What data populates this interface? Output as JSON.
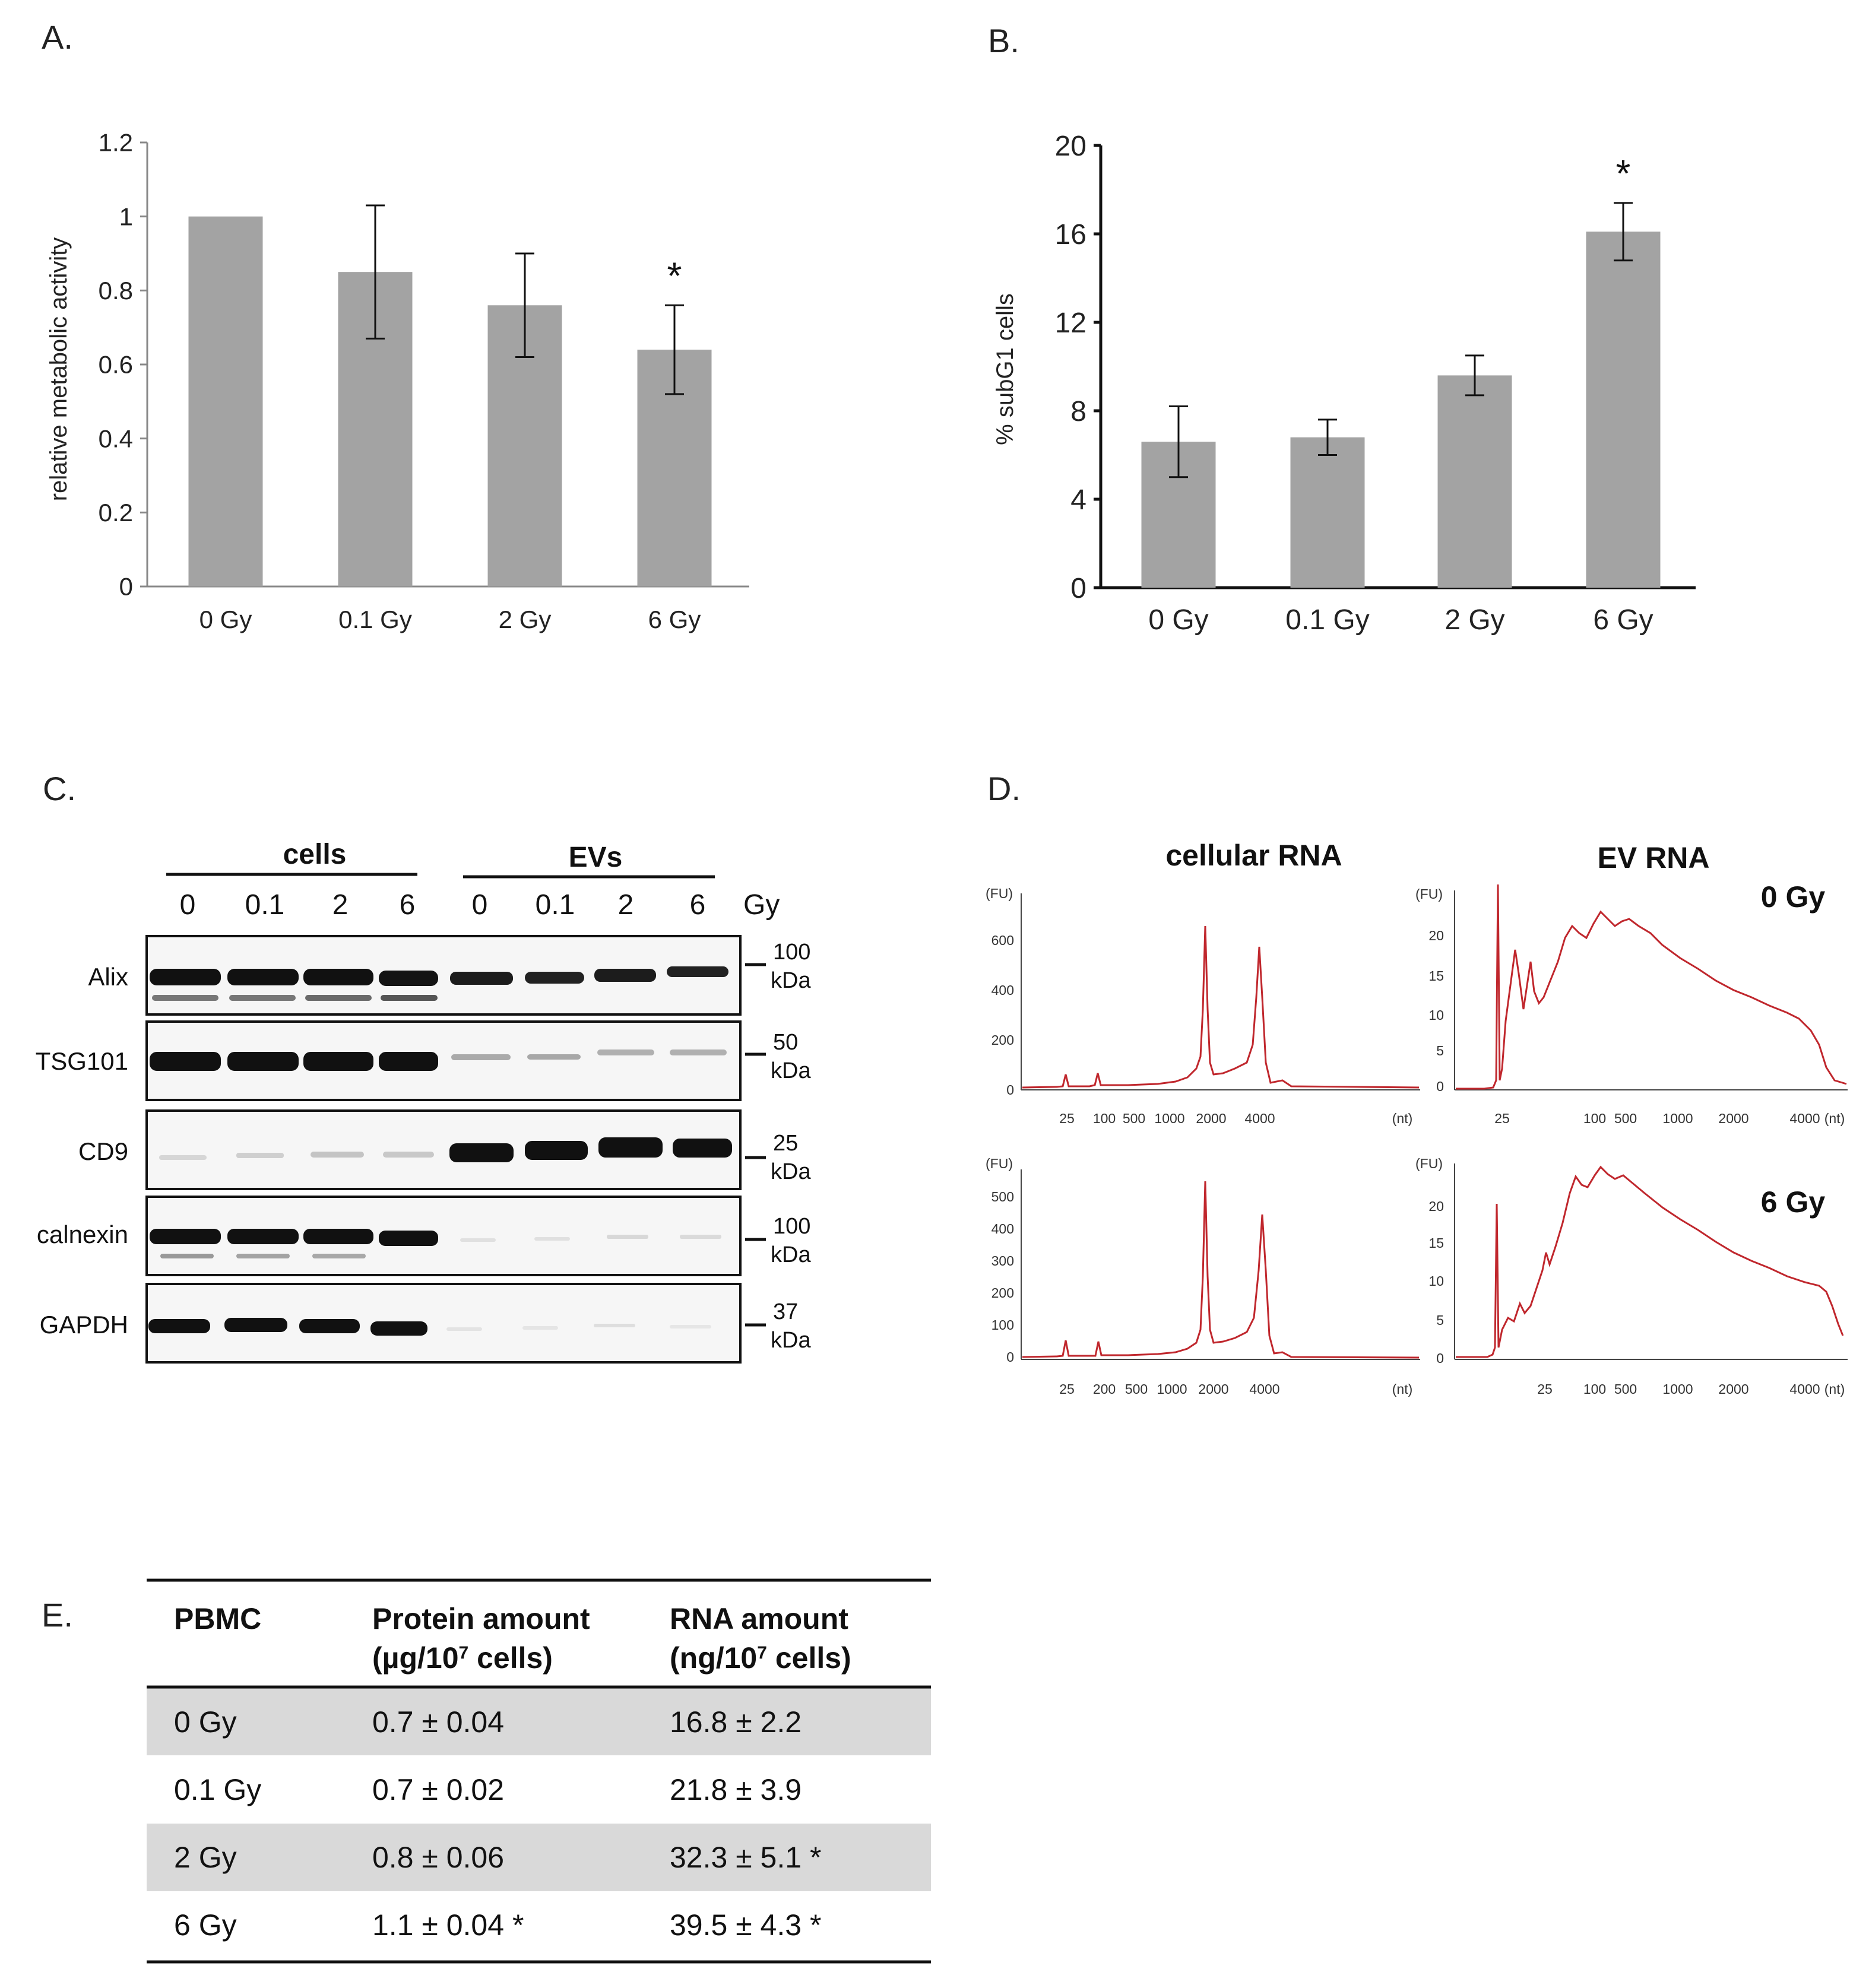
{
  "panels": {
    "a": {
      "label": "A."
    },
    "b": {
      "label": "B."
    },
    "c": {
      "label": "C."
    },
    "d": {
      "label": "D."
    },
    "e": {
      "label": "E."
    }
  },
  "chart_data": [
    {
      "panel": "A",
      "type": "bar",
      "categories": [
        "0 Gy",
        "0.1 Gy",
        "2 Gy",
        "6 Gy"
      ],
      "values": [
        1.0,
        0.85,
        0.76,
        0.64
      ],
      "errors": [
        0,
        0.18,
        0.14,
        0.12
      ],
      "significance": [
        "",
        "",
        "",
        "*"
      ],
      "ylabel": "relative metabolic activity",
      "ylim": [
        0,
        1.2
      ],
      "yticks": [
        "0",
        "0.2",
        "0.4",
        "0.6",
        "0.8",
        "1",
        "1.2"
      ],
      "bar_color": "#a3a3a3",
      "grid": false
    },
    {
      "panel": "B",
      "type": "bar",
      "categories": [
        "0 Gy",
        "0.1 Gy",
        "2 Gy",
        "6 Gy"
      ],
      "values": [
        6.6,
        6.8,
        9.6,
        16.1
      ],
      "errors": [
        1.6,
        0.8,
        0.9,
        1.3
      ],
      "significance": [
        "",
        "",
        "",
        "*"
      ],
      "ylabel": "% subG1 cells",
      "ylim": [
        0,
        20
      ],
      "yticks": [
        "0",
        "4",
        "8",
        "12",
        "16",
        "20"
      ],
      "bar_color": "#a3a3a3",
      "grid": false
    }
  ],
  "western_blot": {
    "group_labels": [
      "cells",
      "EVs"
    ],
    "lane_labels": [
      "0",
      "0.1",
      "2",
      "6",
      "0",
      "0.1",
      "2",
      "6"
    ],
    "unit_label": "Gy",
    "rows": [
      {
        "name": "Alix",
        "mw": "100",
        "unit": "kDa"
      },
      {
        "name": "TSG101",
        "mw": "50",
        "unit": "kDa"
      },
      {
        "name": "CD9",
        "mw": "25",
        "unit": "kDa"
      },
      {
        "name": "calnexin",
        "mw": "100",
        "unit": "kDa"
      },
      {
        "name": "GAPDH",
        "mw": "37",
        "unit": "kDa"
      }
    ]
  },
  "bioanalyzer": {
    "columns": [
      "cellular RNA",
      "EV RNA"
    ],
    "doses": [
      "0 Gy",
      "6 Gy"
    ],
    "y_unit": "(FU)",
    "x_unit": "(nt)",
    "plots": {
      "cell_0": {
        "yticks": [
          "0",
          "200",
          "400",
          "600"
        ],
        "xticks": [
          "25",
          "100",
          "500",
          "1000",
          "2000",
          "4000"
        ]
      },
      "ev_0": {
        "yticks": [
          "0",
          "5",
          "10",
          "15",
          "20"
        ],
        "xticks": [
          "25",
          "100",
          "500",
          "1000",
          "2000",
          "4000"
        ]
      },
      "cell_6": {
        "yticks": [
          "0",
          "100",
          "200",
          "300",
          "400",
          "500"
        ],
        "xticks": [
          "25",
          "200",
          "500",
          "1000",
          "2000",
          "4000"
        ]
      },
      "ev_6": {
        "yticks": [
          "0",
          "5",
          "10",
          "15",
          "20"
        ],
        "xticks": [
          "25",
          "100",
          "500",
          "1000",
          "2000",
          "4000"
        ]
      }
    },
    "trace_color": "#c0272d"
  },
  "table": {
    "headers": [
      {
        "line1": "PBMC",
        "line2": ""
      },
      {
        "line1": "Protein amount",
        "line2": "(µg/10",
        "sup": "7",
        "tail": " cells)"
      },
      {
        "line1": "RNA amount",
        "line2": "(ng/10",
        "sup": "7",
        "tail": " cells)"
      }
    ],
    "rows": [
      [
        "0 Gy",
        "0.7 ± 0.04",
        "16.8 ± 2.2"
      ],
      [
        "0.1 Gy",
        "0.7 ± 0.02",
        "21.8 ± 3.9"
      ],
      [
        "2 Gy",
        "0.8 ± 0.06",
        "32.3 ± 5.1 *"
      ],
      [
        "6 Gy",
        "1.1 ± 0.04 *",
        "39.5 ± 4.3 *"
      ]
    ],
    "shade_color": "#d9d9d9"
  }
}
